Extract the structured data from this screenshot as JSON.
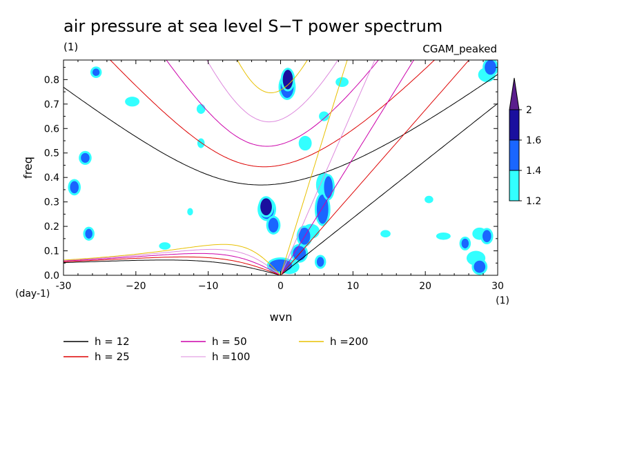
{
  "chart_data": {
    "type": "heatmap",
    "title": "air pressure at sea level S−T power spectrum",
    "subtitle": "(1)",
    "dataset_label": "CGAM_peaked",
    "xlabel": "wvn",
    "ylabel": "freq",
    "x_unit": "(1)",
    "y_unit": "(day-1)",
    "xlim": [
      -30,
      30
    ],
    "ylim": [
      0,
      0.88
    ],
    "x_ticks": [
      -30,
      -20,
      -10,
      0,
      10,
      20,
      30
    ],
    "x_tick_labels": [
      "-30",
      "−20",
      "−10",
      "0",
      "10",
      "20",
      "30"
    ],
    "y_ticks": [
      0.0,
      0.1,
      0.2,
      0.3,
      0.4,
      0.5,
      0.6,
      0.7,
      0.8
    ],
    "y_tick_labels": [
      "0.0",
      "0.1",
      "0.2",
      "0.3",
      "0.4",
      "0.5",
      "0.6",
      "0.7",
      "0.8"
    ],
    "color_levels": [
      1.2,
      1.4,
      1.6,
      2
    ],
    "color_level_labels": [
      "1.2",
      "1.4",
      "1.6",
      "2"
    ],
    "level_colors": [
      "#33ffff",
      "#1a66ff",
      "#1a0f9e",
      "#5a1e8c"
    ],
    "equivalent_depth_curves": [
      {
        "h": 12,
        "label": "h = 12",
        "color": "#000000"
      },
      {
        "h": 25,
        "label": "h = 25",
        "color": "#dd0000"
      },
      {
        "h": 50,
        "label": "h = 50",
        "color": "#cc00aa"
      },
      {
        "h": 100,
        "label": "h =100",
        "color": "#dd88dd"
      },
      {
        "h": 200,
        "label": "h =200",
        "color": "#e8c000"
      }
    ],
    "blobs": [
      {
        "x": 1.0,
        "y": 0.8,
        "rx": 0.7,
        "ry": 0.04,
        "level": 3
      },
      {
        "x": 0.9,
        "y": 0.77,
        "rx": 0.9,
        "ry": 0.045,
        "level": 2
      },
      {
        "x": -2.0,
        "y": 0.28,
        "rx": 0.8,
        "ry": 0.035,
        "level": 3
      },
      {
        "x": -1.9,
        "y": 0.27,
        "rx": 1.0,
        "ry": 0.04,
        "level": 2
      },
      {
        "x": -1.0,
        "y": 0.205,
        "rx": 0.7,
        "ry": 0.03,
        "level": 2
      },
      {
        "x": -1.0,
        "y": 0.205,
        "rx": 0.9,
        "ry": 0.035,
        "level": 1
      },
      {
        "x": 0.0,
        "y": 0.04,
        "rx": 1.6,
        "ry": 0.025,
        "level": 2
      },
      {
        "x": 1.2,
        "y": 0.035,
        "rx": 1.4,
        "ry": 0.03,
        "level": 1
      },
      {
        "x": 2.6,
        "y": 0.09,
        "rx": 0.9,
        "ry": 0.03,
        "level": 2
      },
      {
        "x": 3.3,
        "y": 0.16,
        "rx": 0.8,
        "ry": 0.035,
        "level": 2
      },
      {
        "x": 4.2,
        "y": 0.18,
        "rx": 1.2,
        "ry": 0.03,
        "level": 1
      },
      {
        "x": 5.8,
        "y": 0.27,
        "rx": 0.8,
        "ry": 0.06,
        "level": 2
      },
      {
        "x": 6.6,
        "y": 0.36,
        "rx": 0.6,
        "ry": 0.045,
        "level": 2
      },
      {
        "x": 6.0,
        "y": 0.37,
        "rx": 1.1,
        "ry": 0.05,
        "level": 1
      },
      {
        "x": 3.4,
        "y": 0.54,
        "rx": 0.9,
        "ry": 0.03,
        "level": 1
      },
      {
        "x": 6.0,
        "y": 0.65,
        "rx": 0.7,
        "ry": 0.02,
        "level": 1
      },
      {
        "x": 8.5,
        "y": 0.79,
        "rx": 0.9,
        "ry": 0.02,
        "level": 1
      },
      {
        "x": 5.5,
        "y": 0.055,
        "rx": 0.5,
        "ry": 0.02,
        "level": 2
      },
      {
        "x": 27.5,
        "y": 0.035,
        "rx": 0.8,
        "ry": 0.025,
        "level": 2
      },
      {
        "x": 27.0,
        "y": 0.07,
        "rx": 1.3,
        "ry": 0.03,
        "level": 1
      },
      {
        "x": 28.5,
        "y": 0.16,
        "rx": 0.6,
        "ry": 0.025,
        "level": 2
      },
      {
        "x": 27.5,
        "y": 0.17,
        "rx": 1.0,
        "ry": 0.025,
        "level": 1
      },
      {
        "x": 29.0,
        "y": 0.85,
        "rx": 0.8,
        "ry": 0.03,
        "level": 2
      },
      {
        "x": 28.5,
        "y": 0.82,
        "rx": 1.2,
        "ry": 0.03,
        "level": 1
      },
      {
        "x": 25.5,
        "y": 0.13,
        "rx": 0.5,
        "ry": 0.02,
        "level": 2
      },
      {
        "x": -27.0,
        "y": 0.48,
        "rx": 0.6,
        "ry": 0.02,
        "level": 2
      },
      {
        "x": -28.5,
        "y": 0.36,
        "rx": 0.6,
        "ry": 0.025,
        "level": 2
      },
      {
        "x": -26.5,
        "y": 0.17,
        "rx": 0.5,
        "ry": 0.02,
        "level": 2
      },
      {
        "x": -25.5,
        "y": 0.83,
        "rx": 0.5,
        "ry": 0.015,
        "level": 2
      },
      {
        "x": -11.0,
        "y": 0.54,
        "rx": 0.5,
        "ry": 0.02,
        "level": 1
      },
      {
        "x": -11.0,
        "y": 0.68,
        "rx": 0.6,
        "ry": 0.02,
        "level": 1
      },
      {
        "x": -20.5,
        "y": 0.71,
        "rx": 1.0,
        "ry": 0.02,
        "level": 1
      },
      {
        "x": -12.5,
        "y": 0.26,
        "rx": 0.4,
        "ry": 0.015,
        "level": 1
      },
      {
        "x": -16.0,
        "y": 0.12,
        "rx": 0.8,
        "ry": 0.015,
        "level": 1
      },
      {
        "x": 14.5,
        "y": 0.17,
        "rx": 0.7,
        "ry": 0.015,
        "level": 1
      },
      {
        "x": 20.5,
        "y": 0.31,
        "rx": 0.6,
        "ry": 0.015,
        "level": 1
      },
      {
        "x": 22.5,
        "y": 0.16,
        "rx": 1.0,
        "ry": 0.015,
        "level": 1
      }
    ]
  }
}
